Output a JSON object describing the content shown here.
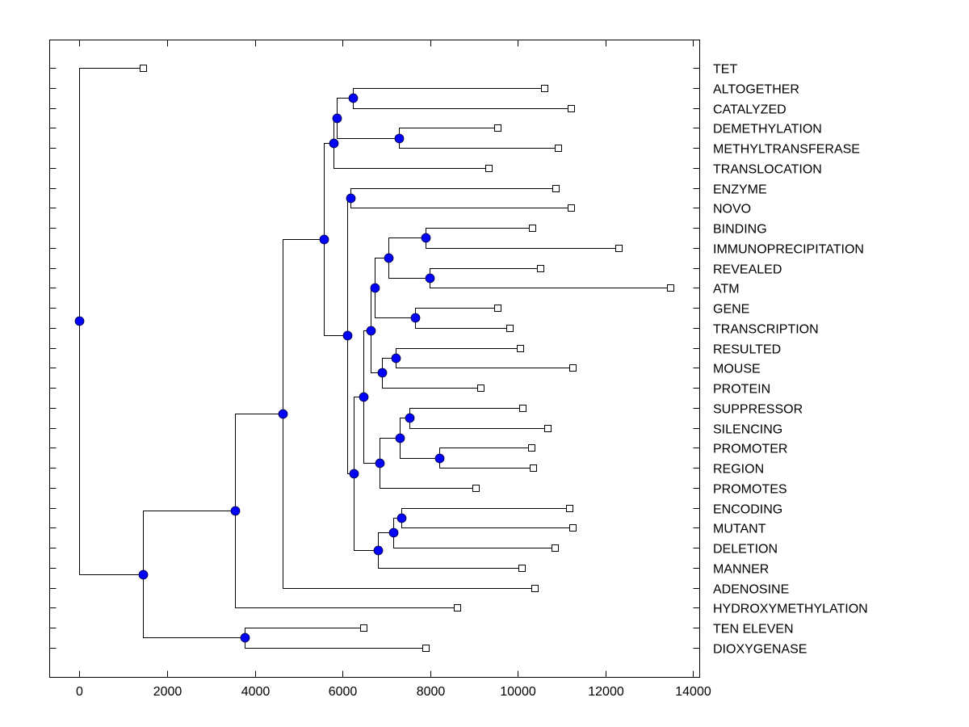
{
  "chart_data": {
    "type": "dendrogram",
    "orientation": "horizontal",
    "title": "",
    "xlabel": "",
    "ylabel": "",
    "xlim": [
      -680,
      14150
    ],
    "xticks": [
      0,
      2000,
      4000,
      6000,
      8000,
      10000,
      12000,
      14000
    ],
    "xtick_labels": [
      "0",
      "2000",
      "4000",
      "6000",
      "8000",
      "10000",
      "12000",
      "14000"
    ],
    "grid": false,
    "colors": {
      "internal_node": "#0000ff",
      "leaf_node": "#ffffff",
      "line": "#000000"
    },
    "leaves": [
      {
        "label": "TET",
        "value": 1440
      },
      {
        "label": "ALTOGETHER",
        "value": 10610
      },
      {
        "label": "CATALYZED",
        "value": 11220
      },
      {
        "label": "DEMETHYLATION",
        "value": 9540
      },
      {
        "label": "METHYLTRANSFERASE",
        "value": 10920
      },
      {
        "label": "TRANSLOCATION",
        "value": 9340
      },
      {
        "label": "ENZYME",
        "value": 10870
      },
      {
        "label": "NOVO",
        "value": 11220
      },
      {
        "label": "BINDING",
        "value": 10330
      },
      {
        "label": "IMMUNOPRECIPITATION",
        "value": 12300
      },
      {
        "label": "REVEALED",
        "value": 10520
      },
      {
        "label": "ATM",
        "value": 13480
      },
      {
        "label": "GENE",
        "value": 9540
      },
      {
        "label": "TRANSCRIPTION",
        "value": 9820
      },
      {
        "label": "RESULTED",
        "value": 10060
      },
      {
        "label": "MOUSE",
        "value": 11240
      },
      {
        "label": "PROTEIN",
        "value": 9150
      },
      {
        "label": "SUPPRESSOR",
        "value": 10110
      },
      {
        "label": "SILENCING",
        "value": 10680
      },
      {
        "label": "PROMOTER",
        "value": 10300
      },
      {
        "label": "REGION",
        "value": 10350
      },
      {
        "label": "PROMOTES",
        "value": 9030
      },
      {
        "label": "ENCODING",
        "value": 11180
      },
      {
        "label": "MUTANT",
        "value": 11240
      },
      {
        "label": "DELETION",
        "value": 10850
      },
      {
        "label": "MANNER",
        "value": 10080
      },
      {
        "label": "ADENOSINE",
        "value": 10390
      },
      {
        "label": "HYDROXYMETHYLATION",
        "value": 8620
      },
      {
        "label": "TEN ELEVEN",
        "value": 6470
      },
      {
        "label": "DIOXYGENASE",
        "value": 7900
      }
    ],
    "tree": {
      "value": 0,
      "children": [
        {
          "leaf": 0
        },
        {
          "value": 1440,
          "children": [
            {
              "value": 3540,
              "children": [
                {
                  "value": 4640,
                  "children": [
                    {
                      "value": 5580,
                      "children": [
                        {
                          "value": 5800,
                          "children": [
                            {
                              "value": 5860,
                              "children": [
                                {
                                  "value": 6230,
                                  "children": [
                                    {
                                      "leaf": 1
                                    },
                                    {
                                      "leaf": 2
                                    }
                                  ]
                                },
                                {
                                  "value": 7290,
                                  "children": [
                                    {
                                      "leaf": 3
                                    },
                                    {
                                      "leaf": 4
                                    }
                                  ]
                                }
                              ]
                            },
                            {
                              "leaf": 5
                            }
                          ]
                        },
                        {
                          "value": 6100,
                          "children": [
                            {
                              "value": 6190,
                              "children": [
                                {
                                  "leaf": 6
                                },
                                {
                                  "leaf": 7
                                }
                              ]
                            },
                            {
                              "value": 6260,
                              "children": [
                                {
                                  "value": 6470,
                                  "children": [
                                    {
                                      "value": 6650,
                                      "children": [
                                        {
                                          "value": 6740,
                                          "children": [
                                            {
                                              "value": 7040,
                                              "children": [
                                                {
                                                  "value": 7900,
                                                  "children": [
                                                    {
                                                      "leaf": 8
                                                    },
                                                    {
                                                      "leaf": 9
                                                    }
                                                  ]
                                                },
                                                {
                                                  "value": 7990,
                                                  "children": [
                                                    {
                                                      "leaf": 10
                                                    },
                                                    {
                                                      "leaf": 11
                                                    }
                                                  ]
                                                }
                                              ]
                                            },
                                            {
                                              "value": 7660,
                                              "children": [
                                                {
                                                  "leaf": 12
                                                },
                                                {
                                                  "leaf": 13
                                                }
                                              ]
                                            }
                                          ]
                                        },
                                        {
                                          "value": 6910,
                                          "children": [
                                            {
                                              "value": 7220,
                                              "children": [
                                                {
                                                  "leaf": 14
                                                },
                                                {
                                                  "leaf": 15
                                                }
                                              ]
                                            },
                                            {
                                              "leaf": 16
                                            }
                                          ]
                                        }
                                      ]
                                    },
                                    {
                                      "value": 6850,
                                      "children": [
                                        {
                                          "value": 7310,
                                          "children": [
                                            {
                                              "value": 7530,
                                              "children": [
                                                {
                                                  "leaf": 17
                                                },
                                                {
                                                  "leaf": 18
                                                }
                                              ]
                                            },
                                            {
                                              "value": 8200,
                                              "children": [
                                                {
                                                  "leaf": 19
                                                },
                                                {
                                                  "leaf": 20
                                                }
                                              ]
                                            }
                                          ]
                                        },
                                        {
                                          "leaf": 21
                                        }
                                      ]
                                    }
                                  ]
                                },
                                {
                                  "value": 6800,
                                  "children": [
                                    {
                                      "value": 7150,
                                      "children": [
                                        {
                                          "value": 7350,
                                          "children": [
                                            {
                                              "leaf": 22
                                            },
                                            {
                                              "leaf": 23
                                            }
                                          ]
                                        },
                                        {
                                          "leaf": 24
                                        }
                                      ]
                                    },
                                    {
                                      "leaf": 25
                                    }
                                  ]
                                }
                              ]
                            }
                          ]
                        }
                      ]
                    },
                    {
                      "leaf": 26
                    }
                  ]
                },
                {
                  "leaf": 27
                }
              ]
            },
            {
              "value": 3760,
              "children": [
                {
                  "leaf": 28
                },
                {
                  "leaf": 29
                }
              ]
            }
          ]
        }
      ]
    }
  }
}
